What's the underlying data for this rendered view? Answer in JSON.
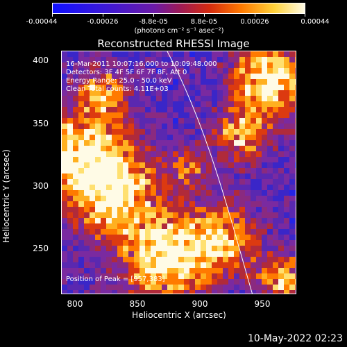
{
  "colorbar": {
    "tick_labels": [
      "-0.00044",
      "-0.00026",
      "-8.8e-05",
      "8.8e-05",
      "0.00026",
      "0.00044"
    ],
    "units": "(photons cm⁻² s⁻¹ asec⁻²)"
  },
  "title": "Reconstructed RHESSI Image",
  "info": {
    "line1": "16-Mar-2011 10:07:16.000 to 10:09:48.000",
    "line2": "Detectors: 3F 4F 5F 6F 7F 8F, Att 0",
    "line3": "Energy Range: 25.0 - 50.0 keV",
    "line4": "Clean   Total counts: 4.11E+03",
    "peak": "Position of Peak = [957,383]"
  },
  "axes": {
    "xlabel": "Heliocentric X (arcsec)",
    "ylabel": "Heliocentric Y (arcsec)",
    "x_ticks": [
      "800",
      "850",
      "900",
      "950"
    ],
    "y_ticks": [
      "400",
      "350",
      "300",
      "250"
    ]
  },
  "footer": {
    "timestamp": "10-May-2022 02:23"
  },
  "colors": {
    "limb_line": "#ffffff",
    "background": "#000000"
  }
}
